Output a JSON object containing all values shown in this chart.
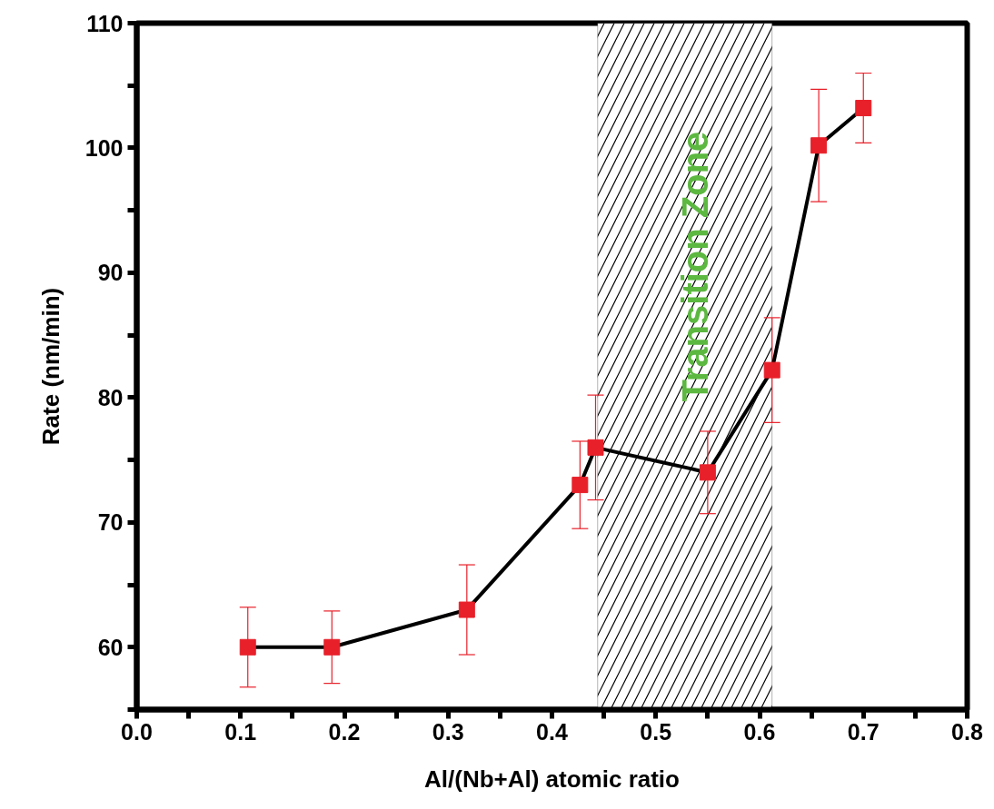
{
  "chart_data": {
    "type": "line",
    "xlabel": "Al/(Nb+Al) atomic ratio",
    "ylabel": "Rate (nm/min)",
    "x": [
      0.107,
      0.188,
      0.318,
      0.427,
      0.442,
      0.55,
      0.612,
      0.657,
      0.7
    ],
    "series": [
      {
        "color": "#e8202a",
        "values": [
          60,
          60,
          63,
          73,
          76,
          74,
          82.2,
          100.2,
          103.2
        ],
        "errors": [
          3.2,
          2.9,
          3.6,
          3.5,
          4.2,
          3.3,
          4.2,
          4.5,
          2.8
        ]
      }
    ],
    "marker": "square",
    "line_style": "solid",
    "xlim": [
      0,
      0.8
    ],
    "ylim": [
      55,
      110
    ],
    "xticks": [
      {
        "value": 0,
        "label": "0.0"
      },
      {
        "value": 0.05,
        "label": null
      },
      0.1,
      {
        "value": 0.15,
        "label": null
      },
      0.2,
      {
        "value": 0.25,
        "label": null
      },
      0.3,
      {
        "value": 0.35,
        "label": null
      },
      0.4,
      {
        "value": 0.45,
        "label": null
      },
      0.5,
      {
        "value": 0.55,
        "label": null
      },
      0.6,
      {
        "value": 0.65,
        "label": null
      },
      0.7,
      {
        "value": 0.75,
        "label": null
      },
      0.8
    ],
    "yticks": [
      {
        "value": 55,
        "label": null
      },
      60,
      {
        "value": 65,
        "label": null
      },
      70,
      {
        "value": 75,
        "label": null
      },
      80,
      {
        "value": 85,
        "label": null
      },
      90,
      {
        "value": 95,
        "label": null
      },
      100,
      {
        "value": 105,
        "label": null
      },
      110
    ],
    "bands": [
      {
        "axis": "x",
        "from": 0.444,
        "to": 0.612,
        "label": "Transition Zone",
        "color": "#000000"
      }
    ],
    "grid": false
  }
}
